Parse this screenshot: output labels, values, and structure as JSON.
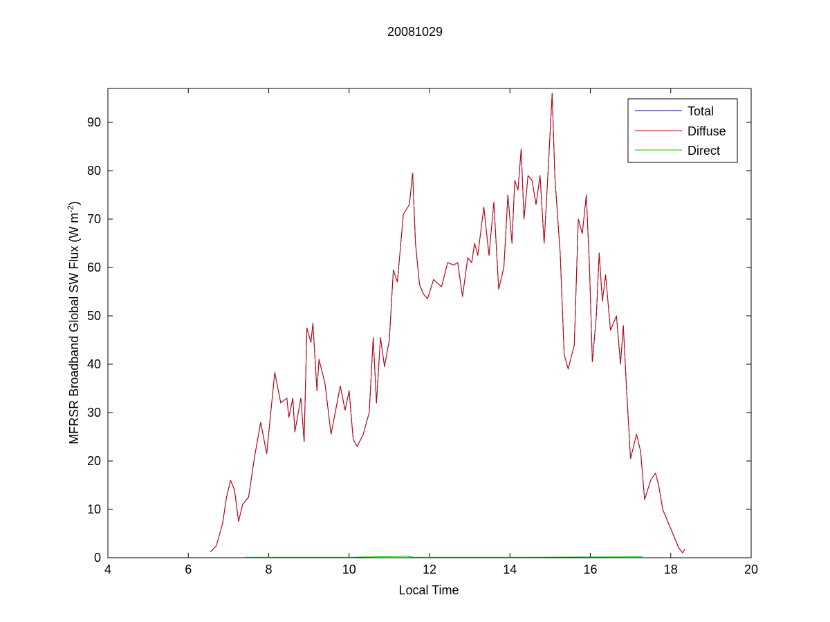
{
  "chart_data": {
    "type": "line",
    "title": "20081029",
    "xlabel": "Local Time",
    "ylabel_main": "MFRSR Broadband Global SW Flux (W m",
    "ylabel_sup": "-2",
    "ylabel_close": ")",
    "xlim": [
      4,
      20
    ],
    "ylim": [
      0,
      97
    ],
    "xticks": [
      4,
      6,
      8,
      10,
      12,
      14,
      16,
      18,
      20
    ],
    "yticks": [
      0,
      10,
      20,
      30,
      40,
      50,
      60,
      70,
      80,
      90
    ],
    "grid": false,
    "legend_position": "top-right",
    "series": [
      {
        "name": "Total",
        "color": "#00008f",
        "points": [
          [
            6.55,
            1.2
          ],
          [
            6.7,
            2.5
          ],
          [
            6.85,
            7
          ],
          [
            6.95,
            12.5
          ],
          [
            7.05,
            16
          ],
          [
            7.15,
            14
          ],
          [
            7.25,
            7.5
          ],
          [
            7.35,
            11
          ],
          [
            7.5,
            12.5
          ],
          [
            7.65,
            21
          ],
          [
            7.8,
            28
          ],
          [
            7.95,
            21.5
          ],
          [
            8.15,
            38.3
          ],
          [
            8.3,
            32
          ],
          [
            8.45,
            33
          ],
          [
            8.5,
            29
          ],
          [
            8.6,
            33
          ],
          [
            8.65,
            26
          ],
          [
            8.8,
            33
          ],
          [
            8.88,
            24
          ],
          [
            8.95,
            47.5
          ],
          [
            9.05,
            44.5
          ],
          [
            9.1,
            48.5
          ],
          [
            9.2,
            34.5
          ],
          [
            9.25,
            41
          ],
          [
            9.4,
            36
          ],
          [
            9.55,
            25.5
          ],
          [
            9.7,
            32
          ],
          [
            9.78,
            35.5
          ],
          [
            9.9,
            30.5
          ],
          [
            10.0,
            34.5
          ],
          [
            10.1,
            24.5
          ],
          [
            10.2,
            23
          ],
          [
            10.35,
            25.5
          ],
          [
            10.5,
            30
          ],
          [
            10.6,
            45.5
          ],
          [
            10.68,
            32
          ],
          [
            10.78,
            45.5
          ],
          [
            10.88,
            39.5
          ],
          [
            11.0,
            45
          ],
          [
            11.1,
            59.5
          ],
          [
            11.2,
            57
          ],
          [
            11.35,
            71
          ],
          [
            11.5,
            73
          ],
          [
            11.58,
            79.5
          ],
          [
            11.65,
            65
          ],
          [
            11.75,
            56.5
          ],
          [
            11.85,
            54.5
          ],
          [
            11.95,
            53.5
          ],
          [
            12.1,
            57.5
          ],
          [
            12.3,
            56
          ],
          [
            12.45,
            61
          ],
          [
            12.6,
            60.5
          ],
          [
            12.7,
            61
          ],
          [
            12.82,
            54
          ],
          [
            12.95,
            62
          ],
          [
            13.05,
            61
          ],
          [
            13.12,
            65
          ],
          [
            13.2,
            62.5
          ],
          [
            13.35,
            72.5
          ],
          [
            13.48,
            62.5
          ],
          [
            13.6,
            73.5
          ],
          [
            13.72,
            55.5
          ],
          [
            13.85,
            60
          ],
          [
            13.95,
            75
          ],
          [
            14.05,
            65
          ],
          [
            14.12,
            78
          ],
          [
            14.2,
            76
          ],
          [
            14.28,
            84.5
          ],
          [
            14.35,
            70
          ],
          [
            14.45,
            79
          ],
          [
            14.55,
            78
          ],
          [
            14.65,
            73
          ],
          [
            14.75,
            79
          ],
          [
            14.85,
            65
          ],
          [
            14.95,
            80
          ],
          [
            15.05,
            96
          ],
          [
            15.12,
            78.5
          ],
          [
            15.25,
            63
          ],
          [
            15.35,
            42
          ],
          [
            15.45,
            39
          ],
          [
            15.6,
            44
          ],
          [
            15.7,
            70
          ],
          [
            15.8,
            67
          ],
          [
            15.9,
            75
          ],
          [
            15.98,
            60
          ],
          [
            16.05,
            40.5
          ],
          [
            16.15,
            50
          ],
          [
            16.22,
            63
          ],
          [
            16.3,
            53
          ],
          [
            16.38,
            58.5
          ],
          [
            16.5,
            47
          ],
          [
            16.65,
            50
          ],
          [
            16.75,
            40
          ],
          [
            16.82,
            48
          ],
          [
            16.9,
            35
          ],
          [
            17.0,
            20.5
          ],
          [
            17.15,
            25.5
          ],
          [
            17.25,
            22
          ],
          [
            17.35,
            12
          ],
          [
            17.5,
            16
          ],
          [
            17.62,
            17.5
          ],
          [
            17.7,
            15
          ],
          [
            17.8,
            10
          ],
          [
            17.9,
            8
          ],
          [
            18.1,
            4
          ],
          [
            18.2,
            2
          ],
          [
            18.3,
            1
          ],
          [
            18.35,
            1.8
          ]
        ]
      },
      {
        "name": "Diffuse",
        "color": "#cc0000",
        "points": [
          [
            6.55,
            1.2
          ],
          [
            6.7,
            2.5
          ],
          [
            6.85,
            7
          ],
          [
            6.95,
            12.5
          ],
          [
            7.05,
            16
          ],
          [
            7.15,
            14
          ],
          [
            7.25,
            7.5
          ],
          [
            7.35,
            11
          ],
          [
            7.5,
            12.5
          ],
          [
            7.65,
            21
          ],
          [
            7.8,
            28
          ],
          [
            7.95,
            21.5
          ],
          [
            8.15,
            38.3
          ],
          [
            8.3,
            32
          ],
          [
            8.45,
            33
          ],
          [
            8.5,
            29
          ],
          [
            8.6,
            33
          ],
          [
            8.65,
            26
          ],
          [
            8.8,
            33
          ],
          [
            8.88,
            24
          ],
          [
            8.95,
            47.5
          ],
          [
            9.05,
            44.5
          ],
          [
            9.1,
            48.5
          ],
          [
            9.2,
            34.5
          ],
          [
            9.25,
            41
          ],
          [
            9.4,
            36
          ],
          [
            9.55,
            25.5
          ],
          [
            9.7,
            32
          ],
          [
            9.78,
            35.5
          ],
          [
            9.9,
            30.5
          ],
          [
            10.0,
            34.5
          ],
          [
            10.1,
            24.5
          ],
          [
            10.2,
            23
          ],
          [
            10.35,
            25.5
          ],
          [
            10.5,
            30
          ],
          [
            10.6,
            45.5
          ],
          [
            10.68,
            32
          ],
          [
            10.78,
            45.5
          ],
          [
            10.88,
            39.5
          ],
          [
            11.0,
            45
          ],
          [
            11.1,
            59.5
          ],
          [
            11.2,
            57
          ],
          [
            11.35,
            71
          ],
          [
            11.5,
            73
          ],
          [
            11.58,
            79.5
          ],
          [
            11.65,
            65
          ],
          [
            11.75,
            56.5
          ],
          [
            11.85,
            54.5
          ],
          [
            11.95,
            53.5
          ],
          [
            12.1,
            57.5
          ],
          [
            12.3,
            56
          ],
          [
            12.45,
            61
          ],
          [
            12.6,
            60.5
          ],
          [
            12.7,
            61
          ],
          [
            12.82,
            54
          ],
          [
            12.95,
            62
          ],
          [
            13.05,
            61
          ],
          [
            13.12,
            65
          ],
          [
            13.2,
            62.5
          ],
          [
            13.35,
            72.5
          ],
          [
            13.48,
            62.5
          ],
          [
            13.6,
            73.5
          ],
          [
            13.72,
            55.5
          ],
          [
            13.85,
            60
          ],
          [
            13.95,
            75
          ],
          [
            14.05,
            65
          ],
          [
            14.12,
            78
          ],
          [
            14.2,
            76
          ],
          [
            14.28,
            84.5
          ],
          [
            14.35,
            70
          ],
          [
            14.45,
            79
          ],
          [
            14.55,
            78
          ],
          [
            14.65,
            73
          ],
          [
            14.75,
            79
          ],
          [
            14.85,
            65
          ],
          [
            14.95,
            80
          ],
          [
            15.05,
            96
          ],
          [
            15.12,
            78.5
          ],
          [
            15.25,
            63
          ],
          [
            15.35,
            42
          ],
          [
            15.45,
            39
          ],
          [
            15.6,
            44
          ],
          [
            15.7,
            70
          ],
          [
            15.8,
            67
          ],
          [
            15.9,
            75
          ],
          [
            15.98,
            60
          ],
          [
            16.05,
            40.5
          ],
          [
            16.15,
            50
          ],
          [
            16.22,
            63
          ],
          [
            16.3,
            53
          ],
          [
            16.38,
            58.5
          ],
          [
            16.5,
            47
          ],
          [
            16.65,
            50
          ],
          [
            16.75,
            40
          ],
          [
            16.82,
            48
          ],
          [
            16.9,
            35
          ],
          [
            17.0,
            20.5
          ],
          [
            17.15,
            25.5
          ],
          [
            17.25,
            22
          ],
          [
            17.35,
            12
          ],
          [
            17.5,
            16
          ],
          [
            17.62,
            17.5
          ],
          [
            17.7,
            15
          ],
          [
            17.8,
            10
          ],
          [
            17.9,
            8
          ],
          [
            18.1,
            4
          ],
          [
            18.2,
            2
          ],
          [
            18.3,
            1
          ],
          [
            18.35,
            1.8
          ]
        ]
      },
      {
        "name": "Direct",
        "color": "#00cc00",
        "points": [
          [
            7.4,
            0.1
          ],
          [
            10.0,
            0.1
          ],
          [
            11.4,
            0.3
          ],
          [
            11.6,
            0.1
          ],
          [
            14.0,
            0.1
          ],
          [
            17.3,
            0.2
          ]
        ]
      }
    ]
  }
}
